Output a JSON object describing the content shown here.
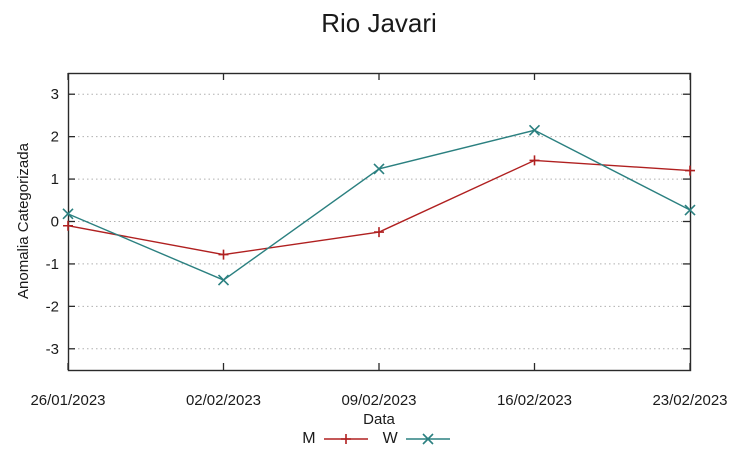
{
  "page": {
    "background": "#ffffff"
  },
  "chart_data": {
    "type": "line",
    "title": "Rio Javari",
    "xlabel": "Data",
    "ylabel": "Anomalia Categorizada",
    "categories": [
      "26/01/2023",
      "02/02/2023",
      "09/02/2023",
      "16/02/2023",
      "23/02/2023"
    ],
    "series": [
      {
        "name": "M",
        "color": "#b02020",
        "marker": "plus",
        "values": [
          -0.1,
          -0.78,
          -0.25,
          1.44,
          1.2
        ]
      },
      {
        "name": "W",
        "color": "#2b8080",
        "marker": "cross",
        "values": [
          0.18,
          -1.38,
          1.24,
          2.15,
          0.27
        ]
      }
    ],
    "ylim": [
      -3.5,
      3.5
    ],
    "yticks": [
      -3,
      -2,
      -1,
      0,
      1,
      2,
      3
    ],
    "grid": true,
    "grid_style": "dotted",
    "grid_color": "#b0b0b0",
    "axis_color": "#2a2a2a",
    "legend_position": "bottom-center"
  }
}
